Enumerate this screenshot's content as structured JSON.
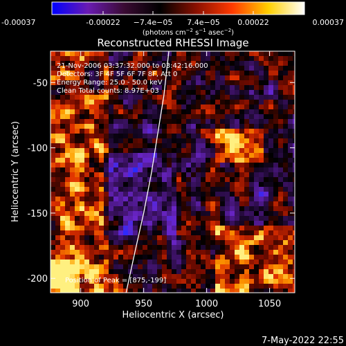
{
  "colorbar": {
    "ticks": [
      "-0.00037",
      "-0.00022",
      "−7.4e−05",
      "7.4e−05",
      "0.00022",
      "0.00037"
    ],
    "tick_values": [
      -0.00037,
      -0.00022,
      -7.4e-05,
      7.4e-05,
      0.00022,
      0.00037
    ],
    "range": [
      -0.00037,
      0.00037
    ],
    "unit_prefix": "(photons cm",
    "unit_exp1": "−2",
    "unit_mid": " s",
    "unit_exp2": "−1",
    "unit_tail": " asec",
    "unit_exp3": "−2",
    "unit_suffix": ")",
    "colors": [
      "#0000ff",
      "#6a1bb2",
      "#3a0b33",
      "#000000",
      "#8a1000",
      "#ff3a00",
      "#ffd000",
      "#ffffff"
    ]
  },
  "chart_data": {
    "type": "heatmap",
    "title": "Reconstructed RHESSI Image",
    "xlabel": "Heliocentric X (arcsec)",
    "ylabel": "Heliocentric Y (arcsec)",
    "xlim": [
      876,
      1070
    ],
    "ylim": [
      -211,
      -26
    ],
    "x_ticks": [
      900,
      950,
      1000,
      1050
    ],
    "y_ticks": [
      -50,
      -100,
      -150,
      -200
    ],
    "grid": false,
    "info_lines": [
      "21-Nov-2006 03:37:32.000 to 03:42:16.000",
      "Detectors: 3F 4F 5F 6F 7F 8F, Att 0",
      "Energy Range: 25.0 - 50.0 keV",
      "Clean    Total counts: 8.97E+03"
    ],
    "peak_label": "Position of Peak = [875,-199]",
    "limb_curve": [
      [
        936,
        -211
      ],
      [
        943,
        -180
      ],
      [
        950,
        -150
      ],
      [
        956,
        -120
      ],
      [
        961,
        -90
      ],
      [
        966,
        -60
      ],
      [
        970,
        -26
      ]
    ]
  },
  "footer": {
    "date": "7-May-2022 22:55"
  }
}
